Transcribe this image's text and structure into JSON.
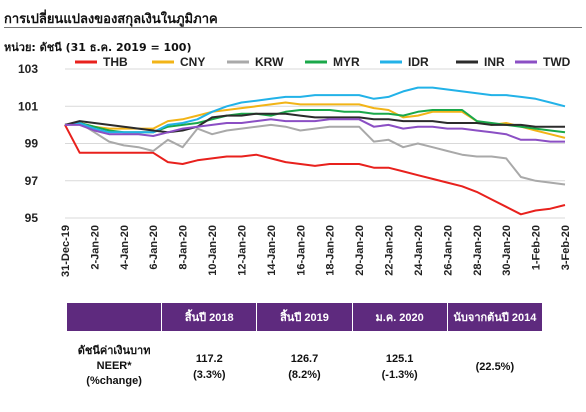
{
  "header": {
    "title": "การเปลี่ยนแปลงของสกุลเงินในภูมิภาค",
    "unit": "หน่วย: ดัชนี (31 ธ.ค. 2019 = 100)"
  },
  "chart_data": {
    "type": "line",
    "title": "",
    "xlabel": "",
    "ylabel": "",
    "ylim": [
      95,
      103
    ],
    "yticks": [
      "95",
      "97",
      "99",
      "101",
      "103"
    ],
    "grid": "horizontal",
    "legend_position": "top",
    "x": [
      "31-Dec-19",
      "1-Jan-20",
      "2-Jan-20",
      "3-Jan-20",
      "4-Jan-20",
      "5-Jan-20",
      "6-Jan-20",
      "7-Jan-20",
      "8-Jan-20",
      "9-Jan-20",
      "10-Jan-20",
      "11-Jan-20",
      "12-Jan-20",
      "13-Jan-20",
      "14-Jan-20",
      "15-Jan-20",
      "16-Jan-20",
      "17-Jan-20",
      "18-Jan-20",
      "19-Jan-20",
      "20-Jan-20",
      "21-Jan-20",
      "22-Jan-20",
      "23-Jan-20",
      "24-Jan-20",
      "25-Jan-20",
      "26-Jan-20",
      "27-Jan-20",
      "28-Jan-20",
      "29-Jan-20",
      "30-Jan-20",
      "31-Jan-20",
      "1-Feb-20",
      "2-Feb-20",
      "3-Feb-20"
    ],
    "x_tick_labels": [
      "31-Dec-19",
      "2-Jan-20",
      "4-Jan-20",
      "6-Jan-20",
      "8-Jan-20",
      "10-Jan-20",
      "12-Jan-20",
      "14-Jan-20",
      "16-Jan-20",
      "18-Jan-20",
      "20-Jan-20",
      "22-Jan-20",
      "24-Jan-20",
      "26-Jan-20",
      "28-Jan-20",
      "30-Jan-20",
      "1-Feb-20",
      "3-Feb-20"
    ],
    "series": [
      {
        "name": "THB",
        "color": "#e8211d",
        "values": [
          100.0,
          98.5,
          98.5,
          98.5,
          98.5,
          98.5,
          98.5,
          98.0,
          97.9,
          98.1,
          98.2,
          98.3,
          98.3,
          98.4,
          98.2,
          98.0,
          97.9,
          97.8,
          97.9,
          97.9,
          97.9,
          97.7,
          97.7,
          97.5,
          97.3,
          97.1,
          96.9,
          96.7,
          96.4,
          96.0,
          95.6,
          95.2,
          95.4,
          95.5,
          95.7
        ]
      },
      {
        "name": "CNY",
        "color": "#f2b417",
        "values": [
          100.0,
          100.1,
          99.9,
          99.8,
          99.8,
          99.8,
          99.8,
          100.2,
          100.3,
          100.5,
          100.7,
          100.8,
          100.9,
          101.0,
          101.1,
          101.2,
          101.1,
          101.1,
          101.1,
          101.1,
          101.1,
          100.9,
          100.8,
          100.4,
          100.5,
          100.7,
          100.7,
          100.7,
          100.2,
          100.0,
          100.1,
          99.9,
          99.7,
          99.5,
          99.3
        ]
      },
      {
        "name": "KRW",
        "color": "#a9a9a9",
        "values": [
          100.0,
          100.1,
          99.6,
          99.1,
          98.9,
          98.8,
          98.6,
          99.2,
          98.8,
          99.8,
          99.5,
          99.7,
          99.8,
          99.9,
          100.0,
          99.9,
          99.7,
          99.8,
          99.9,
          99.9,
          99.9,
          99.1,
          99.2,
          98.8,
          99.0,
          98.8,
          98.6,
          98.4,
          98.3,
          98.3,
          98.2,
          97.2,
          97.0,
          96.9,
          96.8
        ]
      },
      {
        "name": "MYR",
        "color": "#1aa84a",
        "values": [
          100.0,
          100.1,
          99.9,
          99.7,
          99.6,
          99.6,
          99.6,
          99.9,
          100.0,
          100.1,
          100.3,
          100.5,
          100.6,
          100.6,
          100.5,
          100.7,
          100.8,
          100.8,
          100.8,
          100.7,
          100.7,
          100.6,
          100.6,
          100.5,
          100.7,
          100.8,
          100.8,
          100.8,
          100.2,
          100.1,
          100.0,
          99.9,
          99.8,
          99.7,
          99.6
        ]
      },
      {
        "name": "IDR",
        "color": "#22b2e8",
        "values": [
          100.0,
          100.1,
          99.8,
          99.6,
          99.6,
          99.6,
          99.6,
          100.0,
          100.1,
          100.3,
          100.7,
          101.0,
          101.2,
          101.3,
          101.4,
          101.5,
          101.5,
          101.6,
          101.6,
          101.6,
          101.6,
          101.4,
          101.5,
          101.8,
          102.0,
          102.0,
          101.9,
          101.8,
          101.7,
          101.6,
          101.6,
          101.5,
          101.4,
          101.2,
          101.0
        ]
      },
      {
        "name": "INR",
        "color": "#2b2b2b",
        "values": [
          100.0,
          100.2,
          100.1,
          100.0,
          99.9,
          99.8,
          99.7,
          99.6,
          99.7,
          99.9,
          100.4,
          100.5,
          100.5,
          100.6,
          100.6,
          100.6,
          100.5,
          100.4,
          100.4,
          100.4,
          100.4,
          100.3,
          100.3,
          100.2,
          100.2,
          100.2,
          100.1,
          100.1,
          100.1,
          100.0,
          100.0,
          100.0,
          99.9,
          99.9,
          99.9
        ]
      },
      {
        "name": "TWD",
        "color": "#8b4fc4",
        "values": [
          100.0,
          100.0,
          99.7,
          99.5,
          99.5,
          99.5,
          99.4,
          99.6,
          99.8,
          99.9,
          100.0,
          100.1,
          100.1,
          100.2,
          100.3,
          100.2,
          100.2,
          100.2,
          100.3,
          100.3,
          100.3,
          99.9,
          100.0,
          99.8,
          99.9,
          99.9,
          99.8,
          99.8,
          99.7,
          99.6,
          99.5,
          99.2,
          99.2,
          99.1,
          99.1
        ]
      }
    ]
  },
  "table": {
    "headers": [
      "",
      "สิ้นปี 2018",
      "สิ้นปี 2019",
      "ม.ค. 2020",
      "นับจากต้นปี 2014"
    ],
    "row_label_lines": [
      "ดัชนีค่าเงินบาท",
      "NEER*",
      "(%change)"
    ],
    "cells": [
      {
        "value": "117.2",
        "change": "(3.3%)"
      },
      {
        "value": "126.7",
        "change": "(8.2%)"
      },
      {
        "value": "125.1",
        "change": "(-1.3%)"
      },
      {
        "value": "",
        "change": "(22.5%)"
      }
    ]
  }
}
